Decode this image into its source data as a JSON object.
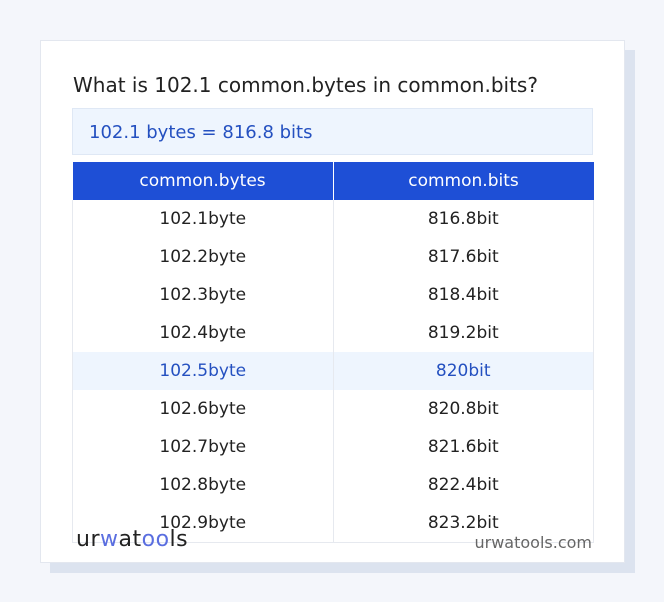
{
  "title": "What is 102.1 common.bytes in common.bits?",
  "result": "102.1 bytes = 816.8 bits",
  "table": {
    "headers": [
      "common.bytes",
      "common.bits"
    ],
    "rows": [
      [
        "102.1byte",
        "816.8bit"
      ],
      [
        "102.2byte",
        "817.6bit"
      ],
      [
        "102.3byte",
        "818.4bit"
      ],
      [
        "102.4byte",
        "819.2bit"
      ],
      [
        "102.5byte",
        "820bit"
      ],
      [
        "102.6byte",
        "820.8bit"
      ],
      [
        "102.7byte",
        "821.6bit"
      ],
      [
        "102.8byte",
        "822.4bit"
      ],
      [
        "102.9byte",
        "823.2bit"
      ]
    ],
    "highlighted_row": 4
  },
  "footer": {
    "logo": "urwatools",
    "site": "urwatools.com"
  },
  "colors": {
    "accent": "#1e4fd6",
    "highlight_bg": "#eef5fe"
  }
}
